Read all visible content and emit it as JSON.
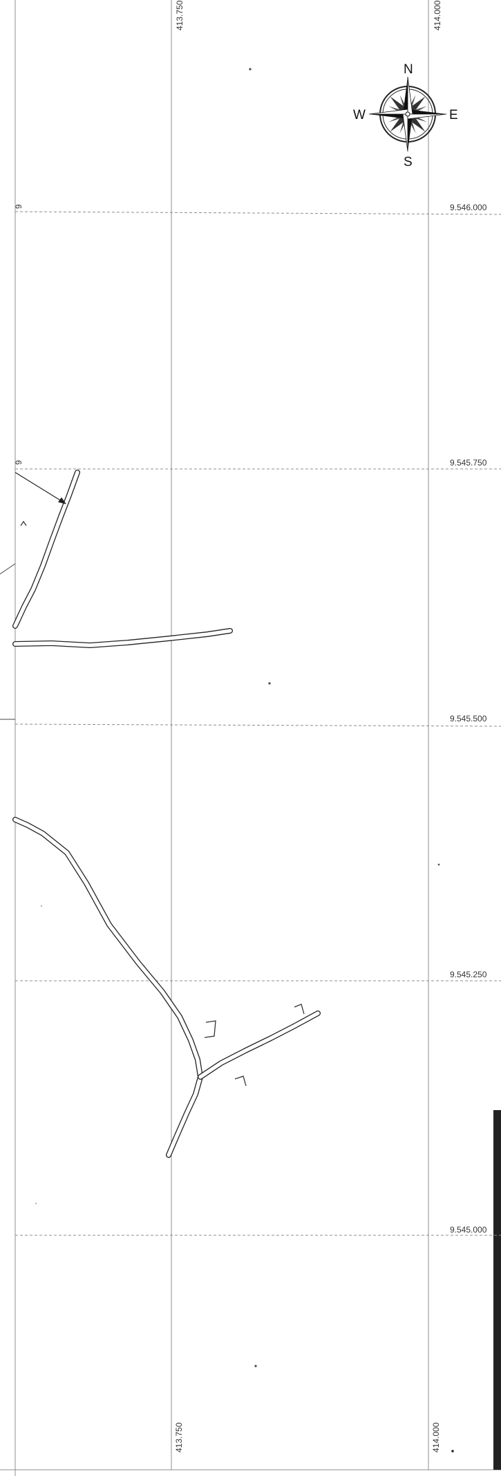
{
  "grid": {
    "eastings": [
      "413.750",
      "414.000"
    ],
    "northings": [
      "9.546.000",
      "9.545.750",
      "9.545.500",
      "9.545.250",
      "9.545.000"
    ],
    "left_edge_marks": [
      "9",
      "9"
    ]
  },
  "compass": {
    "north": "N",
    "east": "E",
    "south": "S",
    "west": "W"
  }
}
